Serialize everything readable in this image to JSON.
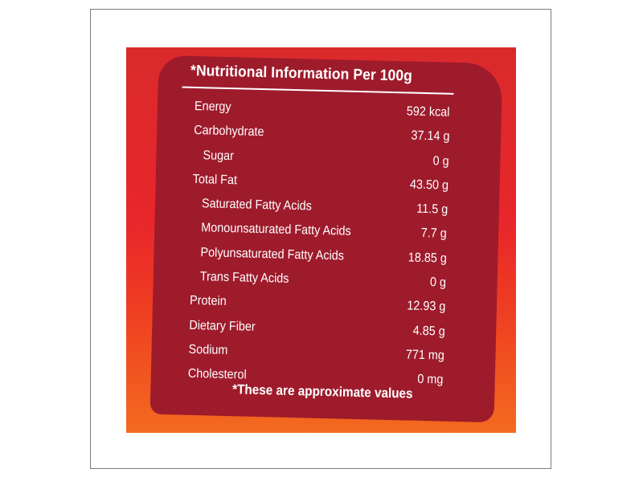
{
  "label": {
    "title": "*Nutritional Information Per 100g",
    "rows": [
      {
        "name": "Energy",
        "value": "592 kcal"
      },
      {
        "name": "Carbohydrate",
        "value": "37.14 g"
      },
      {
        "name": "Sugar",
        "value": "0 g"
      },
      {
        "name": "Total Fat",
        "value": "43.50 g"
      },
      {
        "name": "Saturated Fatty Acids",
        "value": "11.5 g"
      },
      {
        "name": "Monounsaturated Fatty Acids",
        "value": "7.7 g"
      },
      {
        "name": "Polyunsaturated Fatty Acids",
        "value": "18.85 g"
      },
      {
        "name": "Trans Fatty Acids",
        "value": "0 g"
      },
      {
        "name": "Protein",
        "value": "12.93 g"
      },
      {
        "name": "Dietary Fiber",
        "value": "4.85 g"
      },
      {
        "name": "Sodium",
        "value": "771 mg"
      },
      {
        "name": "Cholesterol",
        "value": "0 mg"
      }
    ],
    "footnote": "*These are approximate values"
  },
  "colors": {
    "card": "#9e1b2c",
    "background_top": "#d92a2b",
    "background_bottom": "#f36a1f",
    "text": "#ffffff"
  }
}
